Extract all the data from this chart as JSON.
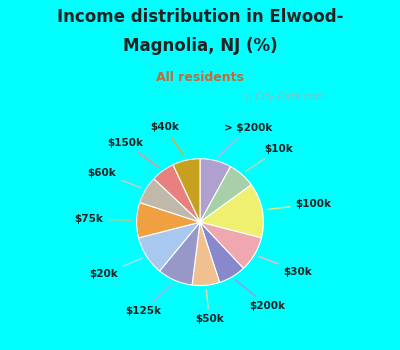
{
  "title_line1": "Income distribution in Elwood-",
  "title_line2": "Magnolia, NJ (%)",
  "subtitle": "All residents",
  "title_color": "#222222",
  "subtitle_color": "#cc6633",
  "bg_top": "#00ffff",
  "bg_chart": "#e0f5ee",
  "watermark": "ⓘ City-Data.com",
  "labels": [
    "> $200k",
    "$10k",
    "$100k",
    "$30k",
    "$200k",
    "$50k",
    "$125k",
    "$20k",
    "$75k",
    "$60k",
    "$150k",
    "$40k"
  ],
  "values": [
    8,
    7,
    14,
    9,
    7,
    7,
    9,
    10,
    9,
    7,
    6,
    7
  ],
  "colors": [
    "#b0a0d0",
    "#a8d0a8",
    "#f0f070",
    "#f0a8b0",
    "#8888cc",
    "#f0c090",
    "#9898c8",
    "#a8c8f0",
    "#f0a040",
    "#c0b8a8",
    "#e88080",
    "#c8a020"
  ],
  "line_colors": [
    "#c0b0e0",
    "#b0d8b0",
    "#e8e880",
    "#f8b8c0",
    "#9898dc",
    "#f8d0a0",
    "#b0b0d8",
    "#b8d8ff",
    "#f8b050",
    "#d0c8b8",
    "#f09090",
    "#d8b030"
  ],
  "figsize": [
    4.0,
    3.5
  ],
  "dpi": 100,
  "title_fontsize": 12,
  "subtitle_fontsize": 9,
  "label_fontsize": 7.5
}
